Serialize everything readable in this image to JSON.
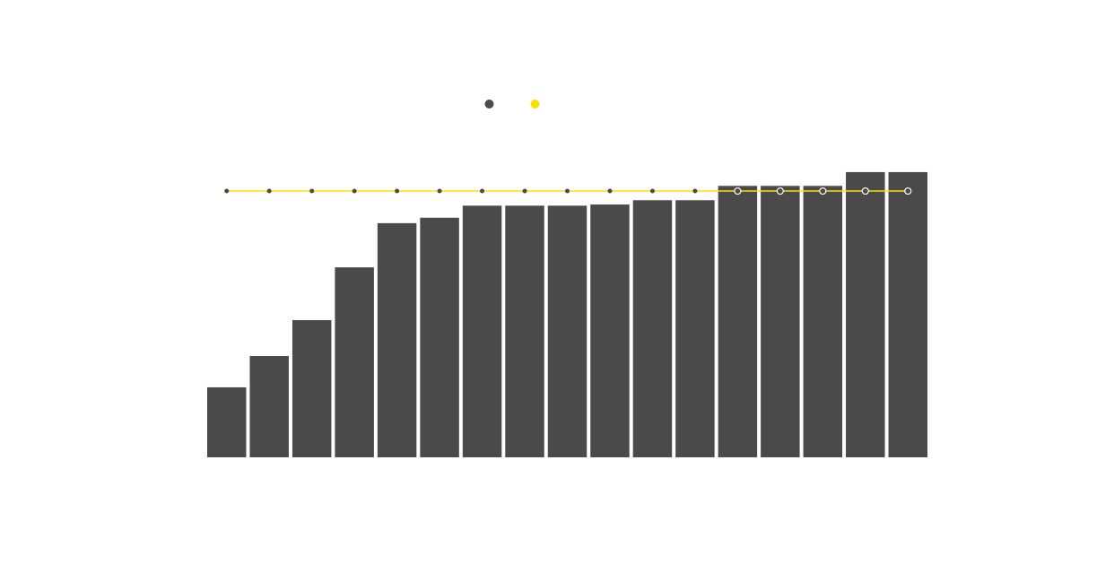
{
  "chart_data": {
    "type": "bar",
    "categories": [
      "",
      "",
      "",
      "",
      "",
      "",
      "",
      "",
      "",
      "",
      "",
      "",
      "",
      "",
      "",
      "",
      ""
    ],
    "series": [
      {
        "type": "bar",
        "color": "#4a4a4a",
        "values": [
          24.4,
          35.3,
          47.8,
          66.2,
          81.6,
          83.5,
          87.7,
          87.7,
          87.7,
          88.1,
          89.6,
          89.6,
          94.6,
          94.6,
          94.6,
          99.4,
          99.4
        ]
      },
      {
        "type": "line",
        "color": "#ffdd00",
        "values": [
          92.8,
          92.8,
          92.8,
          92.8,
          92.8,
          92.8,
          92.8,
          92.8,
          92.8,
          92.8,
          92.8,
          92.8,
          92.8,
          92.8,
          92.8,
          92.8,
          92.8
        ]
      }
    ],
    "ylim": [
      0,
      100
    ],
    "grid": false,
    "legend": {
      "position": "top-center",
      "items": [
        {
          "color": "#4a4a4a",
          "label": ""
        },
        {
          "color": "#ffdd00",
          "label": ""
        }
      ]
    }
  }
}
